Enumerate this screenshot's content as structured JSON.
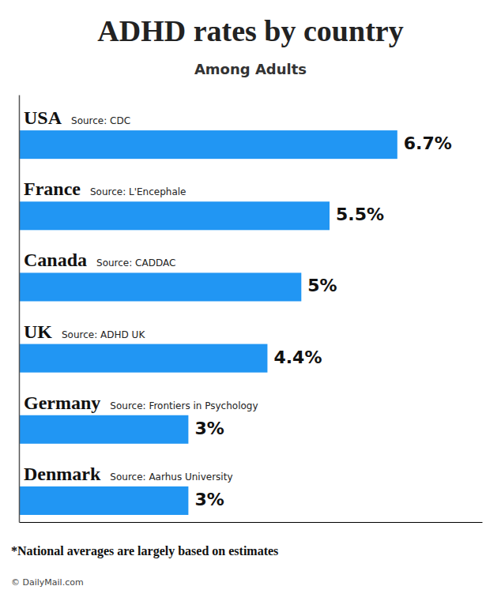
{
  "chart_data": {
    "type": "bar",
    "orientation": "horizontal",
    "title": "ADHD rates by country",
    "subtitle": "Among Adults",
    "categories": [
      "USA",
      "France",
      "Canada",
      "UK",
      "Germany",
      "Denmark"
    ],
    "annotations": [
      "Source: CDC",
      "Source: L'Encephale",
      "Source: CADDAC",
      "Source: ADHD UK",
      "Source: Frontiers in Psychology",
      "Source: Aarhus University"
    ],
    "values": [
      6.7,
      5.5,
      5.0,
      4.4,
      3.0,
      3.0
    ],
    "value_labels": [
      "6.7%",
      "5.5%",
      "5%",
      "4.4%",
      "3%",
      "3%"
    ],
    "data_labels": true,
    "color": "#2196f3",
    "xlim": [
      0,
      8.2
    ],
    "tick_labels": false,
    "grid": false,
    "footnote": "*National averages are largely based on estimates",
    "credit": "© DailyMail.com"
  }
}
